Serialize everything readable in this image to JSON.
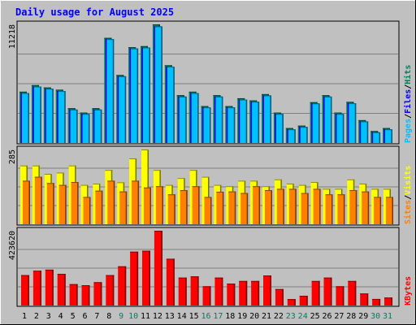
{
  "chart_data": [
    {
      "type": "bar",
      "title": "Daily usage for August 2025",
      "panel": "hits-files-pages",
      "ymax_label": "11218",
      "ylim": [
        0,
        11218
      ],
      "legend": [
        "Pages",
        "Files",
        "Hits"
      ],
      "legend_separator": "/",
      "categories": [
        "1",
        "2",
        "3",
        "4",
        "5",
        "6",
        "7",
        "8",
        "9",
        "10",
        "11",
        "12",
        "13",
        "14",
        "15",
        "16",
        "17",
        "18",
        "19",
        "20",
        "21",
        "22",
        "23",
        "24",
        "25",
        "26",
        "27",
        "28",
        "29",
        "30",
        "31"
      ],
      "weekend_days": [
        "9",
        "10",
        "16",
        "17",
        "23",
        "24",
        "30",
        "31"
      ],
      "series": [
        {
          "name": "Hits",
          "values": [
            4850,
            5470,
            5250,
            5040,
            3290,
            2880,
            3290,
            9940,
            6430,
            9060,
            9160,
            11218,
            7350,
            4520,
            4850,
            3490,
            4520,
            3490,
            4230,
            4030,
            4620,
            2880,
            1410,
            1640,
            3860,
            4520,
            2880,
            3890,
            2160,
            1130,
            1410
          ]
        },
        {
          "name": "Files",
          "values": [
            4720,
            5340,
            5130,
            4910,
            3160,
            2750,
            3160,
            9820,
            6310,
            8940,
            9030,
            11030,
            7220,
            4390,
            4720,
            3370,
            4390,
            3370,
            4110,
            3900,
            4500,
            2750,
            1290,
            1520,
            3740,
            4390,
            2750,
            3760,
            2040,
            1010,
            1290
          ]
        },
        {
          "name": "Pages",
          "values": [
            2900,
            3400,
            3500,
            3100,
            2000,
            2000,
            2100,
            5100,
            4200,
            5300,
            5600,
            6800,
            4700,
            2600,
            2900,
            2200,
            3000,
            2000,
            2600,
            2500,
            3000,
            1600,
            800,
            1100,
            2400,
            2900,
            1900,
            2600,
            1400,
            700,
            1000
          ]
        }
      ]
    },
    {
      "type": "bar",
      "panel": "visits-sites",
      "ymax_label": "285",
      "ylim": [
        0,
        285
      ],
      "legend": [
        "Sites",
        "Visits"
      ],
      "legend_separator": "/",
      "categories": [
        "1",
        "2",
        "3",
        "4",
        "5",
        "6",
        "7",
        "8",
        "9",
        "10",
        "11",
        "12",
        "13",
        "14",
        "15",
        "16",
        "17",
        "18",
        "19",
        "20",
        "21",
        "22",
        "23",
        "24",
        "25",
        "26",
        "27",
        "28",
        "29",
        "30",
        "31"
      ],
      "series": [
        {
          "name": "Visits",
          "values": [
            224,
            224,
            192,
            197,
            224,
            150,
            155,
            207,
            160,
            251,
            285,
            207,
            150,
            176,
            207,
            181,
            150,
            145,
            166,
            166,
            145,
            171,
            155,
            150,
            161,
            135,
            135,
            171,
            155,
            135,
            135
          ]
        },
        {
          "name": "Sites",
          "values": [
            166,
            181,
            157,
            150,
            161,
            104,
            128,
            166,
            125,
            166,
            140,
            145,
            114,
            130,
            145,
            104,
            124,
            125,
            119,
            145,
            130,
            135,
            135,
            119,
            135,
            114,
            114,
            130,
            125,
            104,
            104
          ]
        }
      ]
    },
    {
      "type": "bar",
      "panel": "kbytes",
      "ymax_label": "423620",
      "ylim": [
        0,
        423620
      ],
      "legend": [
        "KBytes"
      ],
      "categories": [
        "1",
        "2",
        "3",
        "4",
        "5",
        "6",
        "7",
        "8",
        "9",
        "10",
        "11",
        "12",
        "13",
        "14",
        "15",
        "16",
        "17",
        "18",
        "19",
        "20",
        "21",
        "22",
        "23",
        "24",
        "25",
        "26",
        "27",
        "28",
        "29",
        "30",
        "31"
      ],
      "series": [
        {
          "name": "KBytes",
          "values": [
            172000,
            197000,
            203000,
            179000,
            121000,
            115000,
            132000,
            172000,
            222000,
            305000,
            310000,
            423620,
            265000,
            158000,
            165000,
            109000,
            158000,
            124000,
            139000,
            139000,
            170000,
            93000,
            36000,
            55000,
            139000,
            158000,
            109000,
            139000,
            68000,
            37000,
            45000
          ]
        }
      ]
    }
  ],
  "colors": {
    "background": "#c0c0c0",
    "panel_bg": "#c0c0c0",
    "title": "#0000ff",
    "hits": "#00805c",
    "files": "#0000ff",
    "pages": "#00c0ff",
    "visits": "#ffff00",
    "sites": "#ff8000",
    "kbytes": "#ff0000",
    "label_weekday": "#000000",
    "label_weekend": "#00805c",
    "grid": "#808080"
  }
}
